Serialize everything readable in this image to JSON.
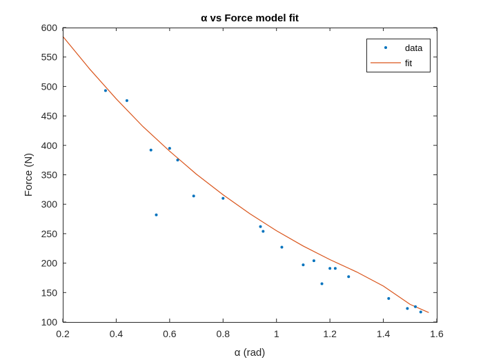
{
  "chart_data": {
    "type": "scatter",
    "title": "α vs Force model fit",
    "xlabel": "α (rad)",
    "ylabel": "Force (N)",
    "xlim": [
      0.2,
      1.6
    ],
    "ylim": [
      100,
      600
    ],
    "xticks": [
      "0.2",
      "0.4",
      "0.6",
      "0.8",
      "1",
      "1.2",
      "1.4",
      "1.6"
    ],
    "yticks": [
      "100",
      "150",
      "200",
      "250",
      "300",
      "350",
      "400",
      "450",
      "500",
      "550",
      "600"
    ],
    "legend_position": "top-right",
    "series": [
      {
        "name": "data",
        "kind": "scatter",
        "color": "#0072BD",
        "points": [
          [
            0.36,
            493
          ],
          [
            0.44,
            476
          ],
          [
            0.53,
            392
          ],
          [
            0.55,
            282
          ],
          [
            0.6,
            395
          ],
          [
            0.63,
            375
          ],
          [
            0.69,
            314
          ],
          [
            0.8,
            310
          ],
          [
            0.94,
            262
          ],
          [
            0.95,
            254
          ],
          [
            1.02,
            227
          ],
          [
            1.1,
            197
          ],
          [
            1.14,
            204
          ],
          [
            1.17,
            165
          ],
          [
            1.2,
            191
          ],
          [
            1.22,
            191
          ],
          [
            1.27,
            177
          ],
          [
            1.42,
            140
          ],
          [
            1.49,
            123
          ],
          [
            1.52,
            126
          ],
          [
            1.54,
            117
          ]
        ]
      },
      {
        "name": "fit",
        "kind": "line",
        "color": "#D95319",
        "points": [
          [
            0.2,
            585
          ],
          [
            0.3,
            530
          ],
          [
            0.4,
            479
          ],
          [
            0.5,
            432
          ],
          [
            0.6,
            390
          ],
          [
            0.7,
            351
          ],
          [
            0.8,
            316
          ],
          [
            0.9,
            284
          ],
          [
            1.0,
            255
          ],
          [
            1.1,
            229
          ],
          [
            1.2,
            206
          ],
          [
            1.3,
            185
          ],
          [
            1.4,
            161
          ],
          [
            1.5,
            130
          ],
          [
            1.57,
            116
          ]
        ]
      }
    ]
  }
}
